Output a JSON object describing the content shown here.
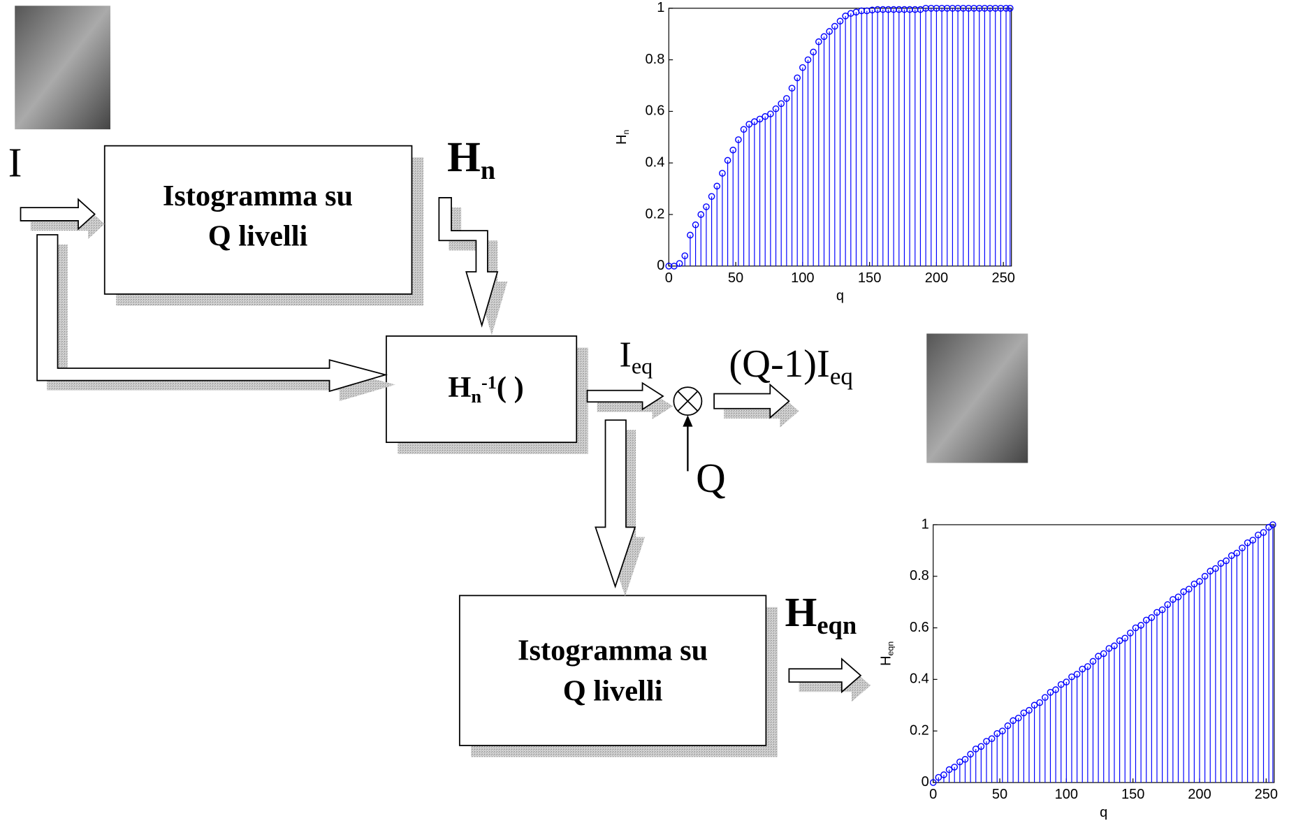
{
  "input_label": "I",
  "blocks": [
    {
      "lines": [
        "Istogramma su",
        "Q livelli"
      ]
    },
    {
      "base": "H",
      "sub": "n",
      "sup": "-1",
      "tail": "( )"
    },
    {
      "lines": [
        "Istogramma su",
        "Q livelli"
      ]
    }
  ],
  "labels": {
    "hn": {
      "base": "H",
      "sub": "n"
    },
    "ieq": {
      "base": "I",
      "sub": "eq"
    },
    "q": "Q",
    "output": {
      "base": "(Q-1)I",
      "sub": "eq"
    },
    "heqn": {
      "base": "H",
      "sub": "eqn"
    }
  },
  "chart_data": [
    {
      "type": "stem",
      "color": "#0000ff",
      "xlabel": "q",
      "ylabel": {
        "base": "H",
        "sub": "n"
      },
      "xlim": [
        0,
        256
      ],
      "ylim": [
        0,
        1
      ],
      "xticks": [
        0,
        50,
        100,
        150,
        200,
        250
      ],
      "yticks": [
        0,
        0.2,
        0.4,
        0.6,
        0.8,
        1
      ],
      "x": [
        0,
        4,
        8,
        12,
        16,
        20,
        24,
        28,
        32,
        36,
        40,
        44,
        48,
        52,
        56,
        60,
        64,
        68,
        72,
        76,
        80,
        84,
        88,
        92,
        96,
        100,
        104,
        108,
        112,
        116,
        120,
        124,
        128,
        132,
        136,
        140,
        144,
        148,
        152,
        156,
        160,
        164,
        168,
        172,
        176,
        180,
        184,
        188,
        192,
        196,
        200,
        204,
        208,
        212,
        216,
        220,
        224,
        228,
        232,
        236,
        240,
        244,
        248,
        252,
        255
      ],
      "values": [
        0,
        0,
        0.01,
        0.04,
        0.12,
        0.16,
        0.2,
        0.23,
        0.27,
        0.31,
        0.36,
        0.41,
        0.45,
        0.49,
        0.53,
        0.55,
        0.56,
        0.57,
        0.58,
        0.59,
        0.61,
        0.63,
        0.65,
        0.69,
        0.73,
        0.77,
        0.8,
        0.83,
        0.87,
        0.89,
        0.91,
        0.93,
        0.95,
        0.97,
        0.98,
        0.985,
        0.99,
        0.99,
        0.993,
        0.995,
        0.995,
        0.995,
        0.995,
        0.995,
        0.995,
        0.995,
        0.995,
        0.995,
        1,
        1,
        1,
        1,
        1,
        1,
        1,
        1,
        1,
        1,
        1,
        1,
        1,
        1,
        1,
        1,
        1
      ]
    },
    {
      "type": "stem",
      "color": "#0000ff",
      "xlabel": "q",
      "ylabel": {
        "base": "H",
        "sub": "eqn"
      },
      "xlim": [
        0,
        256
      ],
      "ylim": [
        0,
        1
      ],
      "xticks": [
        0,
        50,
        100,
        150,
        200,
        250
      ],
      "yticks": [
        0,
        0.2,
        0.4,
        0.6,
        0.8,
        1
      ],
      "x": [
        0,
        4,
        8,
        12,
        16,
        20,
        24,
        28,
        32,
        36,
        40,
        44,
        48,
        52,
        56,
        60,
        64,
        68,
        72,
        76,
        80,
        84,
        88,
        92,
        96,
        100,
        104,
        108,
        112,
        116,
        120,
        124,
        128,
        132,
        136,
        140,
        144,
        148,
        152,
        156,
        160,
        164,
        168,
        172,
        176,
        180,
        184,
        188,
        192,
        196,
        200,
        204,
        208,
        212,
        216,
        220,
        224,
        228,
        232,
        236,
        240,
        244,
        248,
        252,
        255
      ],
      "values": [
        0,
        0.02,
        0.03,
        0.05,
        0.06,
        0.08,
        0.09,
        0.11,
        0.13,
        0.14,
        0.16,
        0.17,
        0.19,
        0.2,
        0.22,
        0.24,
        0.25,
        0.27,
        0.28,
        0.3,
        0.31,
        0.33,
        0.35,
        0.36,
        0.38,
        0.39,
        0.41,
        0.42,
        0.44,
        0.45,
        0.47,
        0.49,
        0.5,
        0.52,
        0.53,
        0.55,
        0.56,
        0.58,
        0.6,
        0.61,
        0.63,
        0.64,
        0.66,
        0.67,
        0.69,
        0.71,
        0.72,
        0.74,
        0.75,
        0.77,
        0.78,
        0.8,
        0.82,
        0.83,
        0.85,
        0.86,
        0.88,
        0.89,
        0.91,
        0.93,
        0.94,
        0.96,
        0.97,
        0.99,
        1
      ]
    }
  ]
}
